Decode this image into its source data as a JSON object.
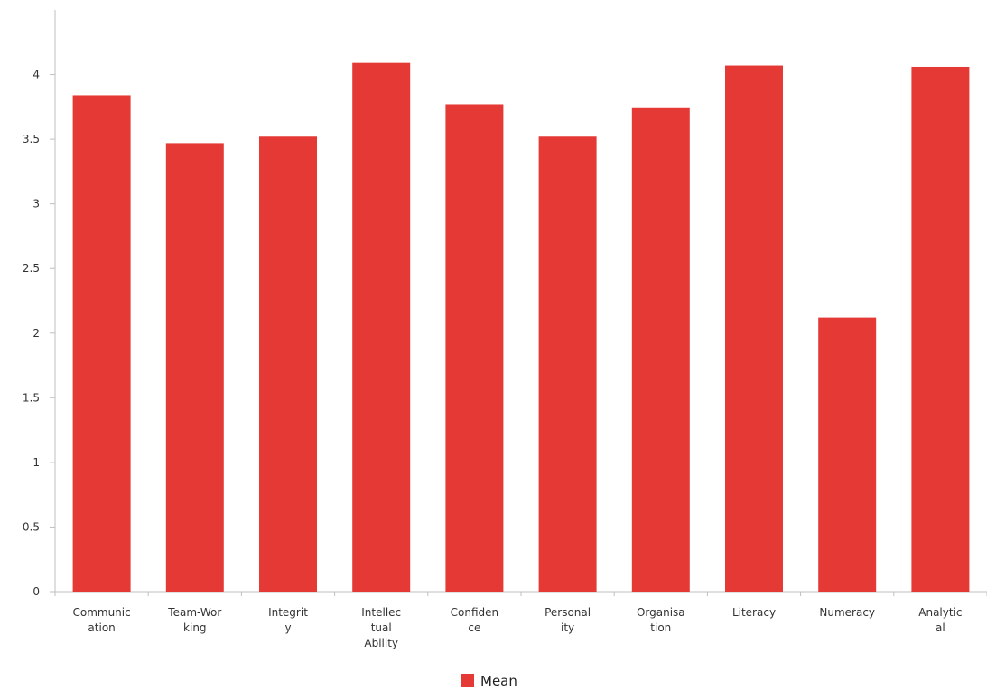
{
  "chart_data": {
    "type": "bar",
    "categories": [
      [
        "Communic",
        "ation"
      ],
      [
        "Team-Wor",
        "king"
      ],
      [
        "Integrit",
        "y"
      ],
      [
        "Intellec",
        "tual",
        "Ability"
      ],
      [
        "Confiden",
        "ce"
      ],
      [
        "Personal",
        "ity"
      ],
      [
        "Organisa",
        "tion"
      ],
      [
        "Literacy"
      ],
      [
        "Numeracy"
      ],
      [
        "Analytic",
        "al"
      ]
    ],
    "series": [
      {
        "name": "Mean",
        "color": "#e53935",
        "values": [
          3.84,
          3.47,
          3.52,
          4.09,
          3.77,
          3.52,
          3.74,
          4.07,
          2.12,
          4.06
        ]
      }
    ],
    "ylim": [
      0,
      4.5
    ],
    "yticks": [
      "0",
      "0.5",
      "1",
      "1.5",
      "2",
      "2.5",
      "3",
      "3.5",
      "4"
    ],
    "grid": false,
    "legend_position": "bottom-center",
    "title": "",
    "xlabel": "",
    "ylabel": ""
  }
}
